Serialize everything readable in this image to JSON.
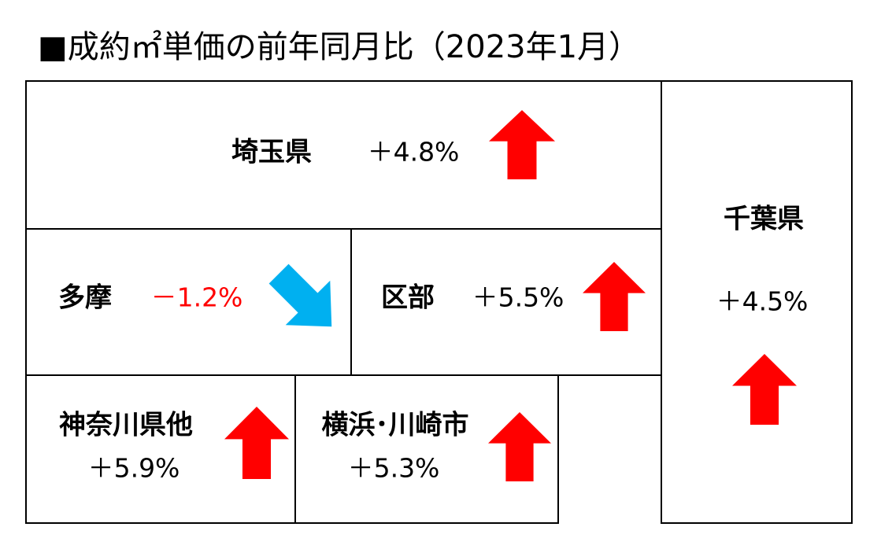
{
  "header": {
    "title": "■成約㎡単価の前年同月比（2023年1月）"
  },
  "regions": [
    {
      "name": "埼玉県",
      "change": "＋4.8%"
    },
    {
      "name": "千葉県",
      "change": "＋4.5%"
    },
    {
      "name": "多摩",
      "change": "－1.2%"
    },
    {
      "name": "区部",
      "change": "＋5.5%"
    },
    {
      "name": "神奈川県他",
      "change": "＋5.9%"
    },
    {
      "name": "横浜･川崎市",
      "change": "＋5.3%"
    }
  ]
}
